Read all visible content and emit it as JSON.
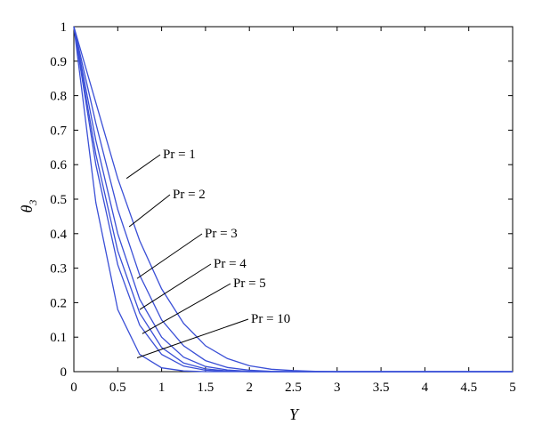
{
  "chart_data": {
    "type": "line",
    "xlabel": "Y",
    "ylabel": "θ3",
    "xlim": [
      0,
      5
    ],
    "ylim": [
      0,
      1
    ],
    "xticks": [
      "0",
      "0.5",
      "1",
      "1.5",
      "2",
      "2.5",
      "3",
      "3.5",
      "4",
      "4.5",
      "5"
    ],
    "yticks": [
      "0",
      "0.1",
      "0.2",
      "0.3",
      "0.4",
      "0.5",
      "0.6",
      "0.7",
      "0.8",
      "0.9",
      "1"
    ],
    "grid": false,
    "line_color": "#3a4fd6",
    "x": [
      0,
      0.25,
      0.5,
      0.75,
      1.0,
      1.25,
      1.5,
      1.75,
      2.0,
      2.25,
      2.5,
      2.75,
      3.0,
      3.5,
      4.0,
      4.5,
      5.0
    ],
    "series": [
      {
        "name": "Pr = 1",
        "values": [
          1.0,
          0.78,
          0.56,
          0.38,
          0.24,
          0.14,
          0.075,
          0.038,
          0.017,
          0.007,
          0.003,
          0.001,
          0.0,
          0.0,
          0.0,
          0.0,
          0.0
        ]
      },
      {
        "name": "Pr = 2",
        "values": [
          1.0,
          0.72,
          0.47,
          0.28,
          0.15,
          0.075,
          0.032,
          0.012,
          0.004,
          0.001,
          0.0,
          0.0,
          0.0,
          0.0,
          0.0,
          0.0,
          0.0
        ]
      },
      {
        "name": "Pr = 3",
        "values": [
          1.0,
          0.67,
          0.4,
          0.21,
          0.1,
          0.042,
          0.015,
          0.005,
          0.001,
          0.0,
          0.0,
          0.0,
          0.0,
          0.0,
          0.0,
          0.0,
          0.0
        ]
      },
      {
        "name": "Pr = 4",
        "values": [
          1.0,
          0.63,
          0.35,
          0.17,
          0.07,
          0.025,
          0.008,
          0.002,
          0.0,
          0.0,
          0.0,
          0.0,
          0.0,
          0.0,
          0.0,
          0.0,
          0.0
        ]
      },
      {
        "name": "Pr = 5",
        "values": [
          1.0,
          0.6,
          0.31,
          0.135,
          0.05,
          0.016,
          0.004,
          0.001,
          0.0,
          0.0,
          0.0,
          0.0,
          0.0,
          0.0,
          0.0,
          0.0,
          0.0
        ]
      },
      {
        "name": "Pr = 10",
        "values": [
          1.0,
          0.49,
          0.18,
          0.05,
          0.011,
          0.002,
          0.0,
          0.0,
          0.0,
          0.0,
          0.0,
          0.0,
          0.0,
          0.0,
          0.0,
          0.0,
          0.0
        ]
      }
    ],
    "annotations": [
      {
        "text": "Pr = 1",
        "point": [
          0.6,
          0.56
        ]
      },
      {
        "text": "Pr = 2",
        "point": [
          0.63,
          0.42
        ]
      },
      {
        "text": "Pr = 3",
        "point": [
          0.72,
          0.27
        ]
      },
      {
        "text": "Pr = 4",
        "point": [
          0.75,
          0.18
        ]
      },
      {
        "text": "Pr = 5",
        "point": [
          0.78,
          0.11
        ]
      },
      {
        "text": "Pr = 10",
        "point": [
          0.72,
          0.04
        ]
      }
    ]
  }
}
